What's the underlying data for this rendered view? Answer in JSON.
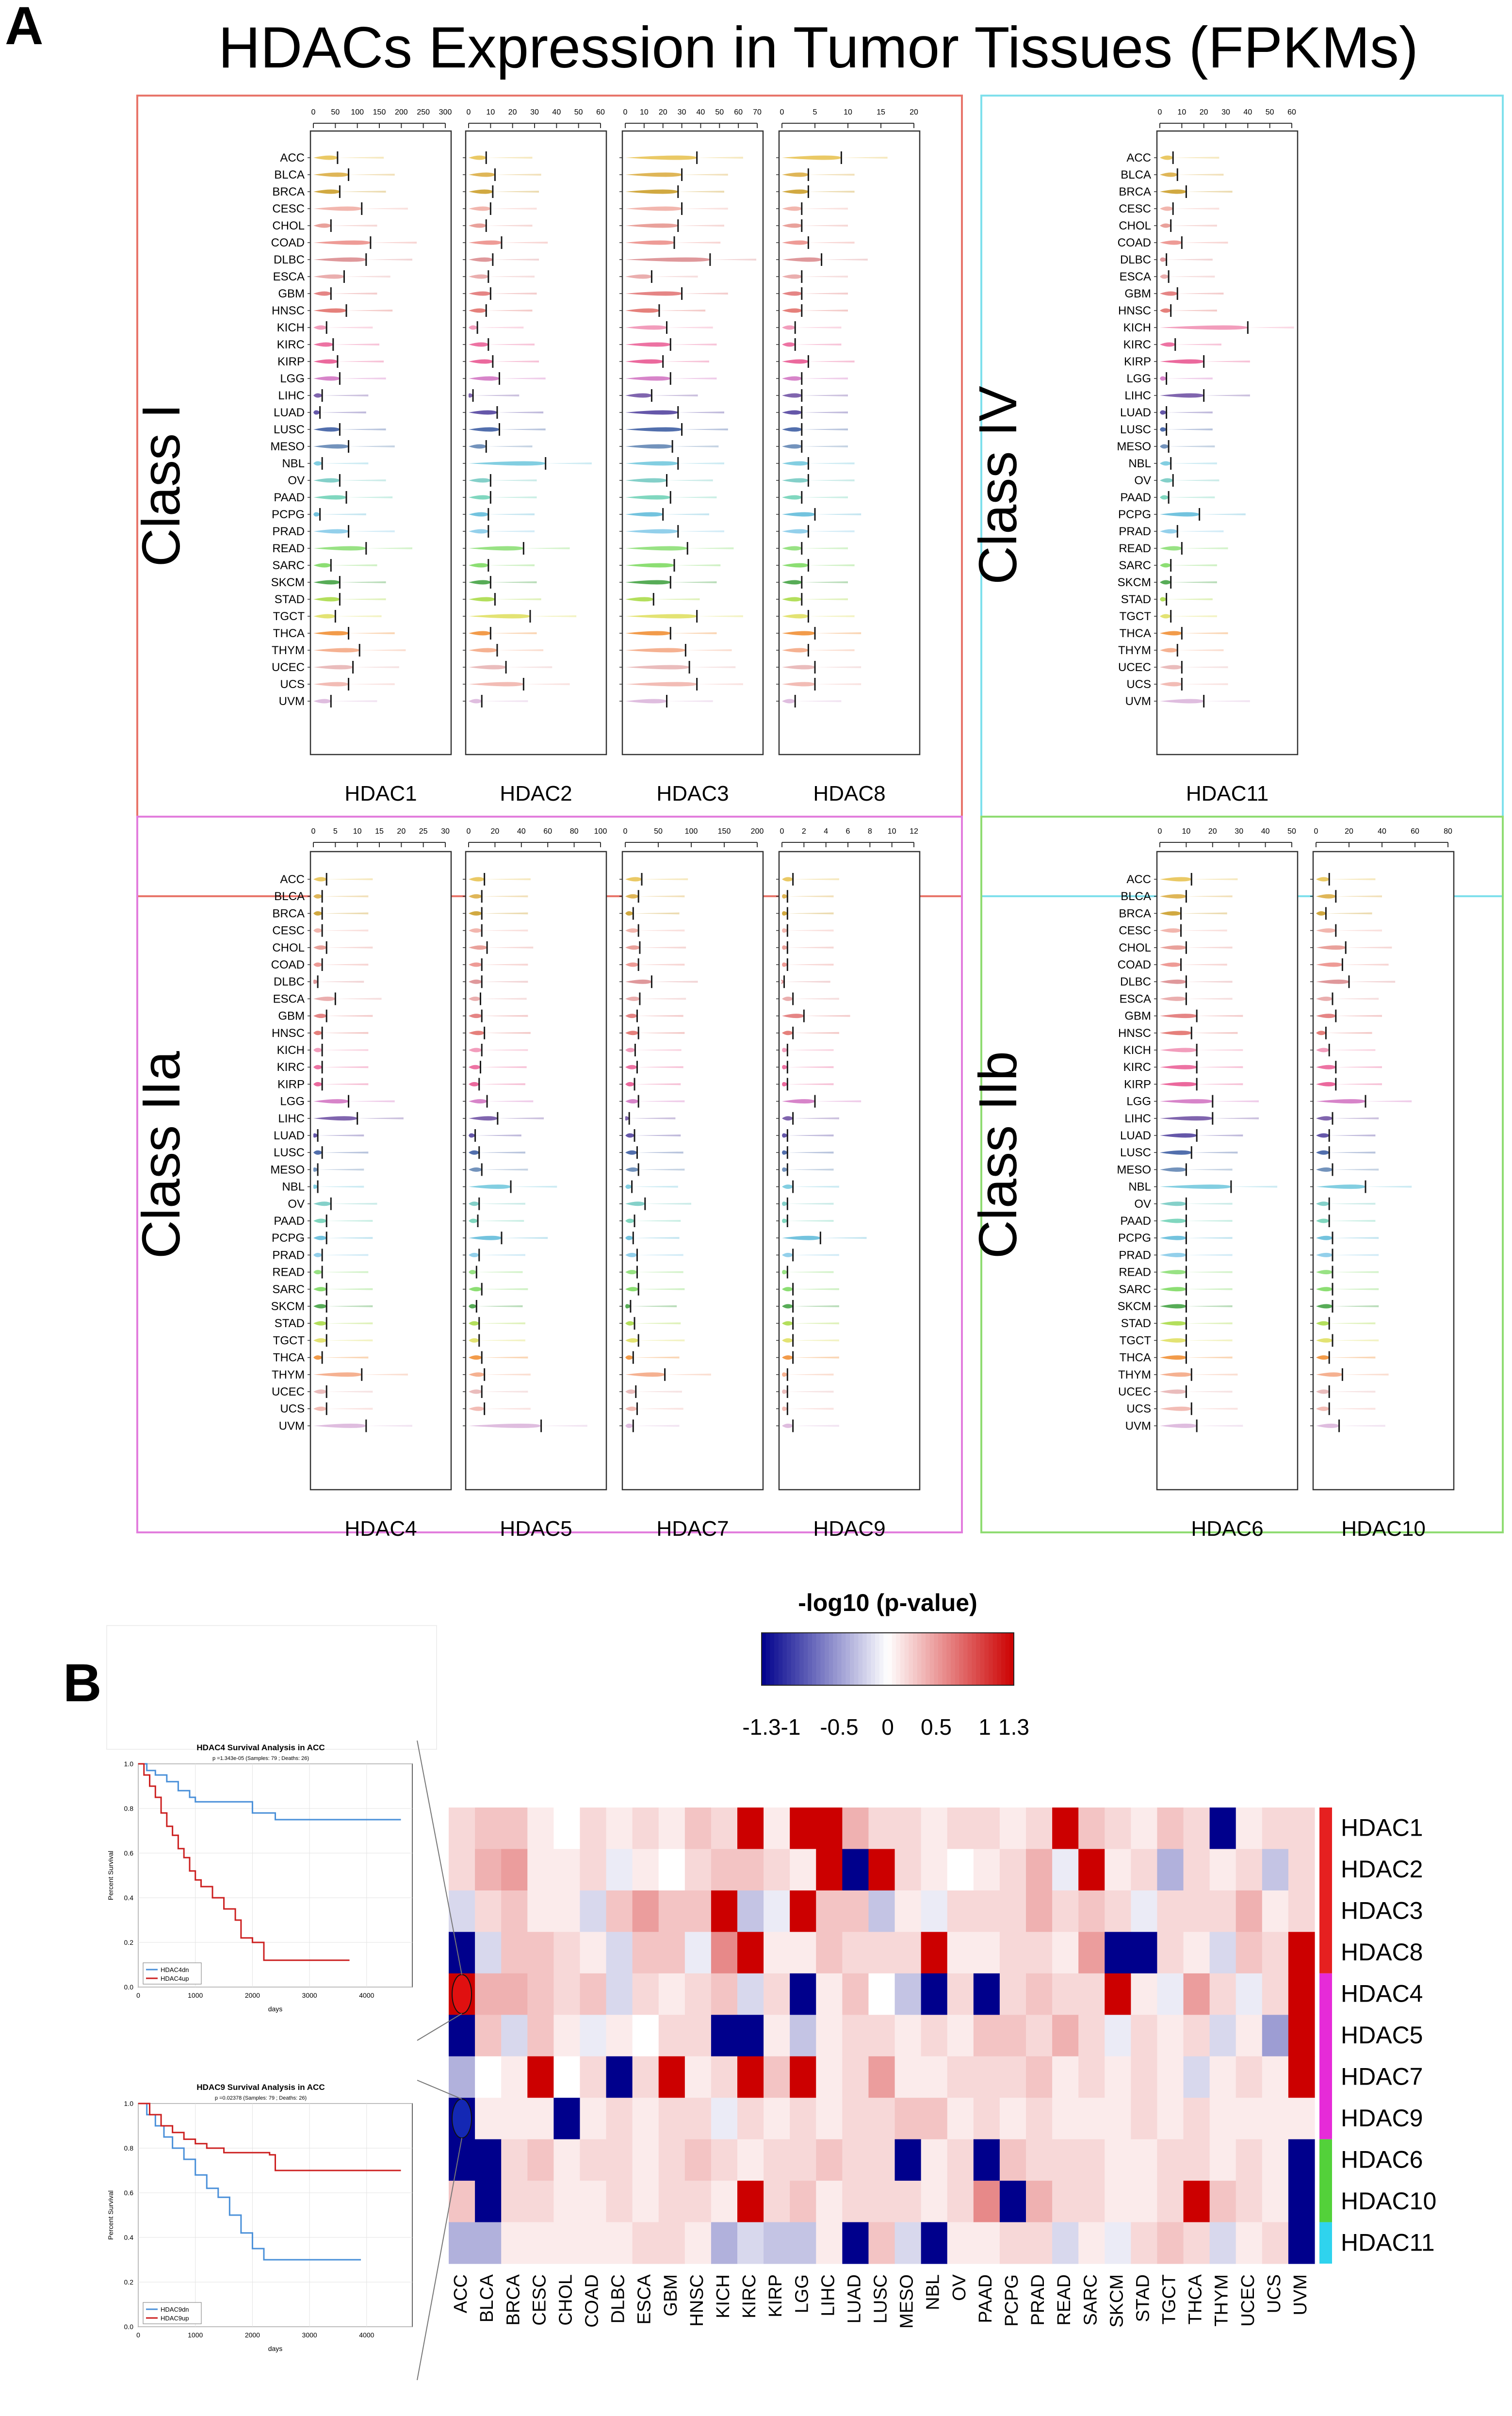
{
  "page": {
    "panel_a_letter": "A",
    "panel_b_letter": "B"
  },
  "panel_a": {
    "title": "HDACs Expression in Tumor Tissues (FPKMs)",
    "groups": [
      {
        "label": "Class I",
        "color": "#e8756a",
        "genes": [
          {
            "name": "HDAC1",
            "ticks": [
              "0",
              "50",
              "100",
              "150",
              "200",
              "250",
              "300"
            ],
            "max": 300
          },
          {
            "name": "HDAC2",
            "ticks": [
              "0",
              "10",
              "20",
              "30",
              "40",
              "50",
              "60"
            ],
            "max": 60
          },
          {
            "name": "HDAC3",
            "ticks": [
              "0",
              "10",
              "20",
              "30",
              "40",
              "50",
              "60",
              "70"
            ],
            "max": 70
          },
          {
            "name": "HDAC8",
            "ticks": [
              "0",
              "5",
              "10",
              "15",
              "20"
            ],
            "max": 20
          }
        ]
      },
      {
        "label": "Class IV",
        "color": "#7fe0ec",
        "genes": [
          {
            "name": "HDAC11",
            "ticks": [
              "0",
              "10",
              "20",
              "30",
              "40",
              "50",
              "60"
            ],
            "max": 60
          }
        ]
      },
      {
        "label": "Class IIa",
        "color": "#e27ddd",
        "genes": [
          {
            "name": "HDAC4",
            "ticks": [
              "0",
              "5",
              "10",
              "15",
              "20",
              "25",
              "30"
            ],
            "max": 30
          },
          {
            "name": "HDAC5",
            "ticks": [
              "0",
              "20",
              "40",
              "60",
              "80",
              "100"
            ],
            "max": 100
          },
          {
            "name": "HDAC7",
            "ticks": [
              "0",
              "50",
              "100",
              "150",
              "200"
            ],
            "max": 200
          },
          {
            "name": "HDAC9",
            "ticks": [
              "0",
              "2",
              "4",
              "6",
              "8",
              "10",
              "12"
            ],
            "max": 12
          }
        ]
      },
      {
        "label": "Class IIb",
        "color": "#8fdc72",
        "genes": [
          {
            "name": "HDAC6",
            "ticks": [
              "0",
              "10",
              "20",
              "30",
              "40",
              "50"
            ],
            "max": 50
          },
          {
            "name": "HDAC10",
            "ticks": [
              "0",
              "20",
              "40",
              "60",
              "80"
            ],
            "max": 80
          }
        ]
      }
    ]
  },
  "chart_data": {
    "type": "heatmap",
    "colorbar": {
      "title": "-log10 (p-value)",
      "ticks": [
        "-1.3",
        "-1",
        "-0.5",
        "0",
        "0.5",
        "1",
        "1.3"
      ],
      "range": [
        -1.3,
        1.3
      ]
    },
    "x": [
      "ACC",
      "BLCA",
      "BRCA",
      "CESC",
      "CHOL",
      "COAD",
      "DLBC",
      "ESCA",
      "GBM",
      "HNSC",
      "KICH",
      "KIRC",
      "KIRP",
      "LGG",
      "LIHC",
      "LUAD",
      "LUSC",
      "MESO",
      "NBL",
      "OV",
      "PAAD",
      "PCPG",
      "PRAD",
      "READ",
      "SARC",
      "SKCM",
      "STAD",
      "TGCT",
      "THCA",
      "THYM",
      "UCEC",
      "UCS",
      "UVM"
    ],
    "y": [
      "HDAC1",
      "HDAC2",
      "HDAC3",
      "HDAC8",
      "HDAC4",
      "HDAC5",
      "HDAC7",
      "HDAC9",
      "HDAC6",
      "HDAC10",
      "HDAC11"
    ],
    "row_groups": [
      {
        "color": "#e62020",
        "rows": [
          "HDAC1",
          "HDAC2",
          "HDAC3",
          "HDAC8"
        ]
      },
      {
        "color": "#e62bd8",
        "rows": [
          "HDAC4",
          "HDAC5",
          "HDAC7",
          "HDAC9"
        ]
      },
      {
        "color": "#53d13a",
        "rows": [
          "HDAC6",
          "HDAC10"
        ]
      },
      {
        "color": "#2fd3ee",
        "rows": [
          "HDAC11"
        ]
      }
    ],
    "values": [
      [
        0.2,
        0.3,
        0.3,
        0.1,
        0,
        0.2,
        0.1,
        0.2,
        0.1,
        0.3,
        0.2,
        1.3,
        0.1,
        1.3,
        1.3,
        0.4,
        0.2,
        0.2,
        0.1,
        0.2,
        0.2,
        0.1,
        0.2,
        1.3,
        0.3,
        0.2,
        0.1,
        0.3,
        0.2,
        -1.3,
        0.1,
        0.2,
        0.2
      ],
      [
        0.2,
        0.4,
        0.5,
        0.1,
        0.1,
        0.2,
        -0.1,
        0.1,
        0,
        0.2,
        0.3,
        0.3,
        0.2,
        0.1,
        1.3,
        -1.3,
        1.3,
        0.2,
        0.1,
        0,
        0.1,
        0.2,
        0.4,
        -0.1,
        1.3,
        0.1,
        0.2,
        -0.4,
        0.2,
        0.1,
        0.2,
        -0.3,
        0.2
      ],
      [
        -0.2,
        0.2,
        0.3,
        0.1,
        0.1,
        -0.2,
        0.3,
        0.5,
        0.3,
        0.3,
        1.3,
        -0.3,
        -0.1,
        1.3,
        0.3,
        0.3,
        -0.3,
        0.1,
        -0.1,
        0.2,
        0.2,
        0.2,
        0.4,
        0.2,
        0.3,
        0.2,
        -0.1,
        0.2,
        0.2,
        0.2,
        0.4,
        0.1,
        0.2
      ],
      [
        -1.3,
        -0.2,
        0.3,
        0.3,
        0.2,
        0.1,
        -0.2,
        0.3,
        0.3,
        -0.1,
        0.6,
        1.3,
        0.1,
        0.1,
        0.3,
        0.2,
        0.2,
        0.2,
        1.3,
        0.1,
        0.1,
        0.2,
        0.2,
        0.1,
        0.5,
        -1.3,
        -1.3,
        0.2,
        0.1,
        -0.2,
        0.3,
        0.2,
        1.3
      ],
      [
        1.3,
        0.4,
        0.4,
        0.3,
        0.2,
        0.3,
        -0.2,
        0.2,
        0.1,
        0.2,
        0.3,
        -0.2,
        0.2,
        -1.3,
        0.1,
        0.3,
        0,
        -0.3,
        -1.3,
        0.2,
        -1.3,
        0.2,
        0.3,
        0.2,
        0.2,
        1.3,
        0.1,
        -0.1,
        0.5,
        0.2,
        -0.1,
        0.2,
        1.3
      ],
      [
        -1.3,
        0.3,
        -0.2,
        0.3,
        0.1,
        -0.1,
        0.1,
        0,
        0.2,
        0.2,
        -1.3,
        -1.3,
        0.1,
        -0.3,
        0.1,
        0.2,
        0.2,
        0.1,
        0.2,
        0.1,
        0.3,
        0.3,
        0.2,
        0.4,
        0.2,
        -0.1,
        0.2,
        0.1,
        0.2,
        -0.2,
        0.1,
        -0.5,
        1.3
      ],
      [
        -0.4,
        0,
        0.1,
        1.3,
        0,
        0.2,
        -1.3,
        0.2,
        1.3,
        0.1,
        0.2,
        1.3,
        0.3,
        1.3,
        0.1,
        0.2,
        0.5,
        0.1,
        0.1,
        0.2,
        0.2,
        0.2,
        0.3,
        0.1,
        0.2,
        0.1,
        0.2,
        0.1,
        -0.2,
        0.1,
        0.2,
        0.1,
        1.3
      ],
      [
        -1.3,
        0.1,
        0.1,
        0.1,
        -1.3,
        0.1,
        0.2,
        0.1,
        0.2,
        0.2,
        -0.1,
        0.2,
        0.1,
        0.2,
        0.1,
        0.2,
        0.2,
        0.3,
        0.3,
        0.1,
        0.2,
        0.1,
        0.2,
        0.1,
        0.1,
        0.1,
        0.2,
        0.1,
        0.2,
        0.1,
        0.1,
        0.1,
        0.1
      ],
      [
        -1.3,
        -1.3,
        0.2,
        0.3,
        0.1,
        0.2,
        0.2,
        0.1,
        0.2,
        0.3,
        0.2,
        0.1,
        0.2,
        0.2,
        0.3,
        0.2,
        0.2,
        -1.3,
        0.1,
        0.2,
        -1.3,
        0.3,
        0.2,
        0.2,
        0.2,
        0.1,
        0.1,
        0.2,
        0.2,
        0.1,
        0.2,
        0.1,
        -1.3
      ],
      [
        0.3,
        -1.3,
        0.2,
        0.2,
        0.1,
        0.1,
        0.2,
        0.1,
        0.2,
        0.2,
        0.1,
        1.3,
        0.2,
        0.3,
        0.1,
        0.2,
        0.2,
        0.2,
        0.1,
        0.2,
        0.6,
        -1.3,
        0.4,
        0.2,
        0.2,
        0.1,
        0.1,
        0.2,
        1.3,
        0.3,
        0.2,
        0.1,
        -1.3
      ],
      [
        -0.4,
        -0.4,
        0.1,
        0.1,
        0.1,
        0.1,
        0.1,
        0.2,
        0.2,
        0.1,
        -0.4,
        -0.2,
        -0.3,
        -0.3,
        0.1,
        -1.3,
        0.3,
        -0.2,
        -1.3,
        0.1,
        0.1,
        0.2,
        0.2,
        -0.2,
        0.1,
        -0.1,
        0.2,
        0.3,
        0.2,
        -0.2,
        0.1,
        0.2,
        -1.3
      ]
    ],
    "highlights": [
      {
        "row": "HDAC4",
        "col": "ACC",
        "color": "#e01010"
      },
      {
        "row": "HDAC9",
        "col": "ACC",
        "color": "#1428b4"
      }
    ]
  },
  "survival": [
    {
      "title": "HDAC4 Survival Analysis in ACC",
      "subtitle": "p =1.343e-05 (Samples: 79 ; Deaths: 26)",
      "ylabel": "Percent Survival",
      "xlabel": "days",
      "yticks": [
        "0.0",
        "0.2",
        "0.4",
        "0.6",
        "0.8",
        "1.0"
      ],
      "xticks": [
        "0",
        "1000",
        "2000",
        "3000",
        "4000"
      ],
      "legend": [
        {
          "label": "HDAC4dn",
          "color": "#4a90d9"
        },
        {
          "label": "HDAC4up",
          "color": "#cc2020"
        }
      ],
      "series": [
        {
          "name": "HDAC4dn",
          "color": "#4a90d9",
          "points": [
            [
              0,
              1.0
            ],
            [
              150,
              0.97
            ],
            [
              300,
              0.95
            ],
            [
              500,
              0.92
            ],
            [
              700,
              0.88
            ],
            [
              900,
              0.85
            ],
            [
              1000,
              0.83
            ],
            [
              1700,
              0.83
            ],
            [
              2000,
              0.78
            ],
            [
              2400,
              0.75
            ],
            [
              4600,
              0.75
            ]
          ]
        },
        {
          "name": "HDAC4up",
          "color": "#cc2020",
          "points": [
            [
              0,
              1.0
            ],
            [
              100,
              0.95
            ],
            [
              200,
              0.9
            ],
            [
              300,
              0.85
            ],
            [
              400,
              0.78
            ],
            [
              500,
              0.72
            ],
            [
              600,
              0.68
            ],
            [
              700,
              0.62
            ],
            [
              800,
              0.58
            ],
            [
              900,
              0.52
            ],
            [
              1000,
              0.48
            ],
            [
              1100,
              0.45
            ],
            [
              1300,
              0.4
            ],
            [
              1500,
              0.35
            ],
            [
              1700,
              0.3
            ],
            [
              1800,
              0.22
            ],
            [
              2000,
              0.2
            ],
            [
              2200,
              0.12
            ],
            [
              3700,
              0.12
            ]
          ]
        }
      ]
    },
    {
      "title": "HDAC9 Survival Analysis in ACC",
      "subtitle": "p =0.02378 (Samples: 79 ; Deaths: 26)",
      "ylabel": "Percent Survival",
      "xlabel": "days",
      "yticks": [
        "0.0",
        "0.2",
        "0.4",
        "0.6",
        "0.8",
        "1.0"
      ],
      "xticks": [
        "0",
        "1000",
        "2000",
        "3000",
        "4000"
      ],
      "legend": [
        {
          "label": "HDAC9dn",
          "color": "#4a90d9"
        },
        {
          "label": "HDAC9up",
          "color": "#cc2020"
        }
      ],
      "series": [
        {
          "name": "HDAC9dn",
          "color": "#4a90d9",
          "points": [
            [
              0,
              1.0
            ],
            [
              150,
              0.95
            ],
            [
              300,
              0.9
            ],
            [
              450,
              0.85
            ],
            [
              600,
              0.8
            ],
            [
              800,
              0.75
            ],
            [
              1000,
              0.68
            ],
            [
              1200,
              0.62
            ],
            [
              1400,
              0.58
            ],
            [
              1600,
              0.5
            ],
            [
              1800,
              0.42
            ],
            [
              2000,
              0.35
            ],
            [
              2200,
              0.3
            ],
            [
              3900,
              0.3
            ]
          ]
        },
        {
          "name": "HDAC9up",
          "color": "#cc2020",
          "points": [
            [
              0,
              1.0
            ],
            [
              200,
              0.95
            ],
            [
              400,
              0.9
            ],
            [
              600,
              0.87
            ],
            [
              800,
              0.84
            ],
            [
              1000,
              0.82
            ],
            [
              1200,
              0.8
            ],
            [
              1500,
              0.78
            ],
            [
              2300,
              0.77
            ],
            [
              2400,
              0.7
            ],
            [
              4600,
              0.7
            ]
          ]
        }
      ]
    }
  ]
}
